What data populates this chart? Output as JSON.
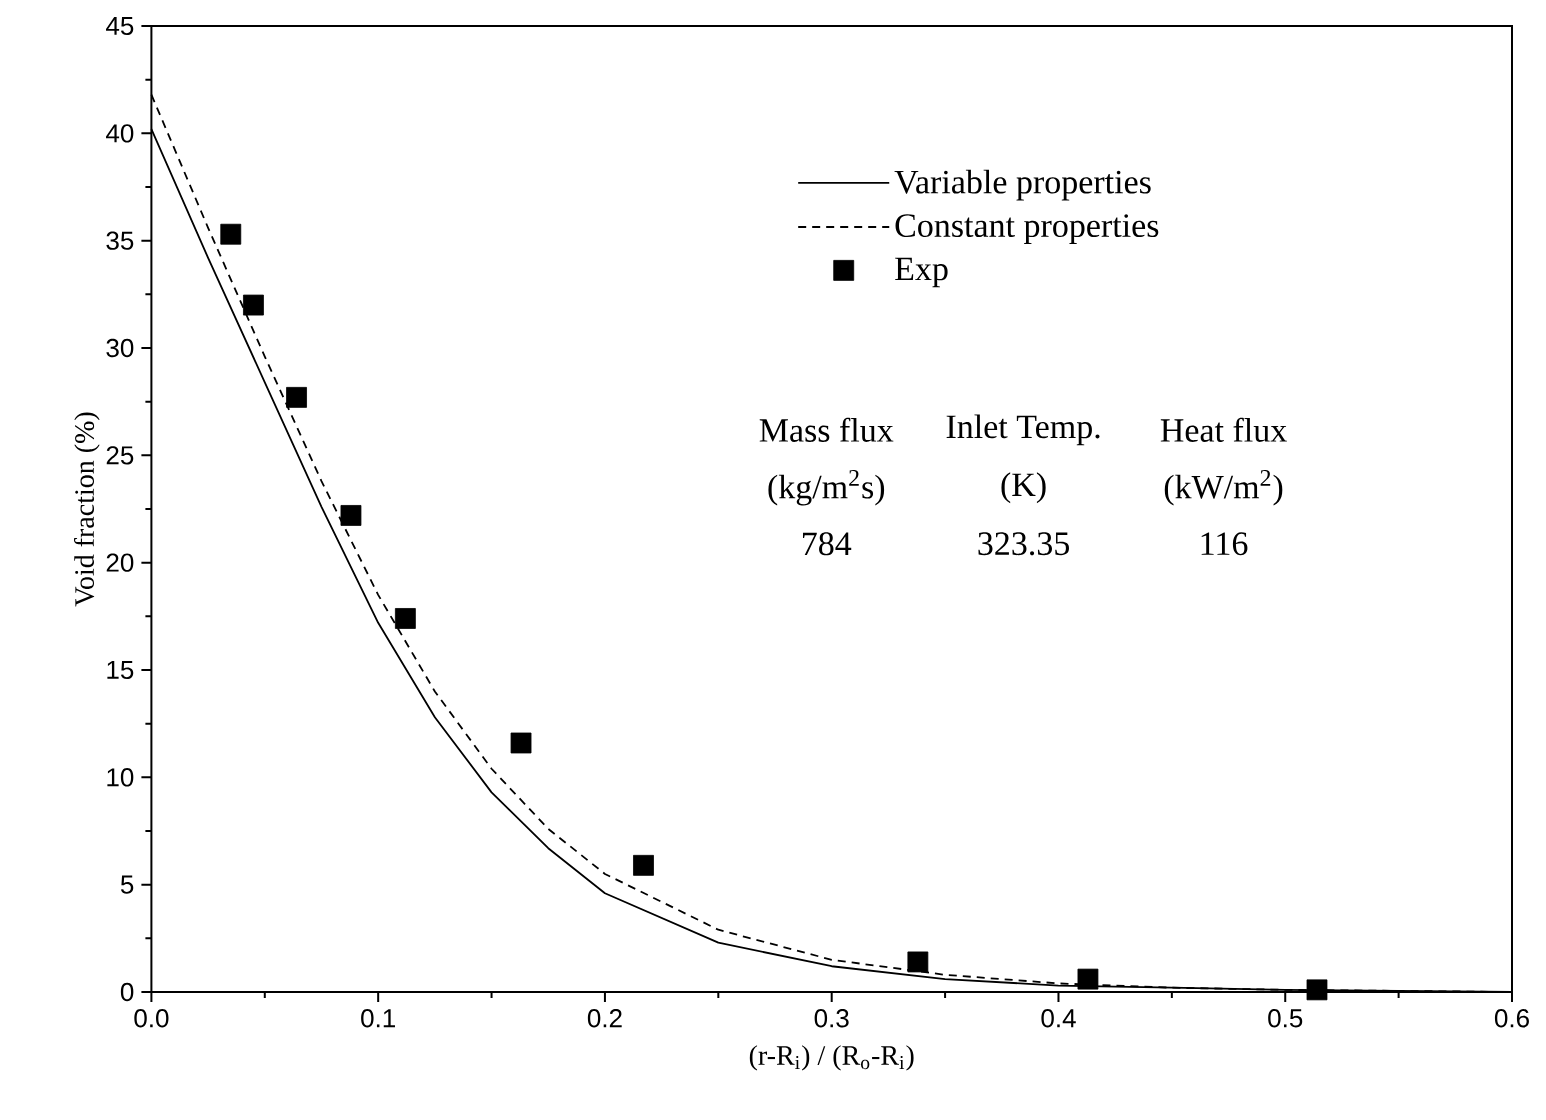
{
  "chart_data": {
    "type": "line",
    "xlabel": "(r-R$_{i}$) / (R$_{o}$-R$_{i}$)",
    "ylabel": "Void fraction  (%)",
    "xlim": [
      0,
      0.6
    ],
    "ylim": [
      0,
      45
    ],
    "xticks": [
      {
        "value": 0,
        "label": "0.0"
      },
      0.1,
      0.2,
      0.3,
      0.4,
      0.5,
      0.6
    ],
    "yticks": [
      0,
      5,
      10,
      15,
      20,
      25,
      30,
      35,
      40,
      45
    ],
    "legend": "top right",
    "grid": false,
    "series": [
      {
        "name": "Variable properties",
        "color": "#000000",
        "line_style": "solid",
        "marker": "none",
        "x": [
          0,
          0.025,
          0.05,
          0.075,
          0.1,
          0.125,
          0.15,
          0.175,
          0.2,
          0.25,
          0.3,
          0.35,
          0.4,
          0.45,
          0.5,
          0.6
        ],
        "values": [
          40.2,
          34.2,
          28.4,
          22.6,
          17.2,
          12.8,
          9.3,
          6.7,
          4.6,
          2.3,
          1.2,
          0.6,
          0.3,
          0.2,
          0.1,
          0
        ]
      },
      {
        "name": "Constant properties",
        "color": "#000000",
        "line_style": "dashed",
        "marker": "none",
        "x": [
          0,
          0.025,
          0.05,
          0.075,
          0.1,
          0.125,
          0.15,
          0.175,
          0.2,
          0.25,
          0.3,
          0.35,
          0.4,
          0.45,
          0.5,
          0.6
        ],
        "values": [
          41.8,
          35.6,
          29.6,
          23.8,
          18.5,
          14.0,
          10.4,
          7.6,
          5.5,
          2.9,
          1.5,
          0.8,
          0.4,
          0.2,
          0.1,
          0
        ]
      },
      {
        "name": "Exp",
        "type": "scatter",
        "color": "#000000",
        "marker": "square",
        "x": [
          0.035,
          0.045,
          0.064,
          0.088,
          0.112,
          0.163,
          0.217,
          0.338,
          0.413,
          0.514
        ],
        "values": [
          35.3,
          32.0,
          27.7,
          22.2,
          17.4,
          11.6,
          5.9,
          1.4,
          0.6,
          0.1
        ]
      }
    ],
    "annotations": [
      "Mass flux",
      "Inlet Temp.",
      "Heat flux",
      "(kg/m$^{2}$s)",
      "(K)",
      "(kW/m$^{2}$)",
      "784",
      "323.35",
      "116"
    ]
  }
}
